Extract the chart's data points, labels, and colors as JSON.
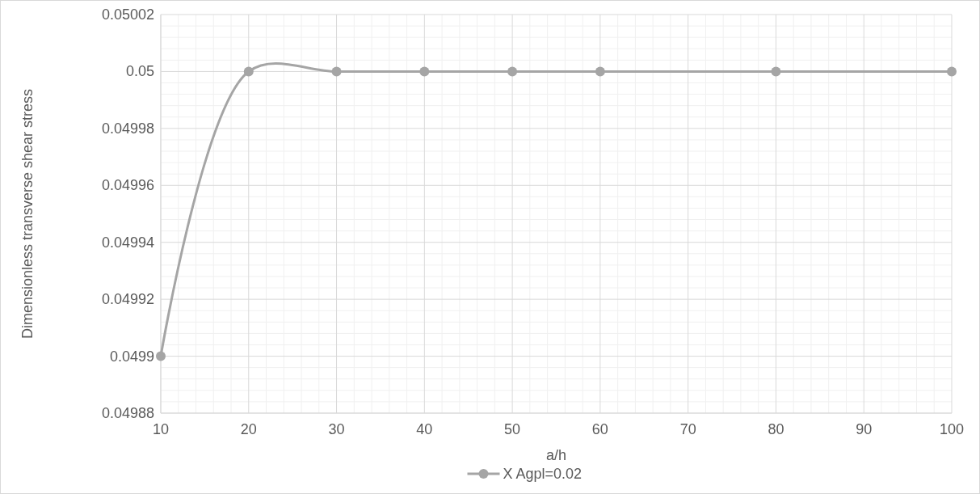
{
  "chart_data": {
    "type": "line",
    "xlabel": "a/h",
    "ylabel": "Dimensionless transverse shear stress",
    "x": [
      10,
      20,
      30,
      40,
      50,
      60,
      80,
      100
    ],
    "series": [
      {
        "name": "X Agpl=0.02",
        "color": "#a5a5a5",
        "values": [
          0.0499,
          0.05,
          0.05,
          0.05,
          0.05,
          0.05,
          0.05,
          0.05
        ]
      }
    ],
    "xlim": [
      10,
      100
    ],
    "xticks": [
      10,
      20,
      30,
      40,
      50,
      60,
      70,
      80,
      90,
      100
    ],
    "ylim": [
      0.04988,
      0.05002
    ],
    "yticks": [
      {
        "value": 0.04988,
        "label": "0.04988"
      },
      {
        "value": 0.0499,
        "label": "0.0499"
      },
      {
        "value": 0.04992,
        "label": "0.04992"
      },
      {
        "value": 0.04994,
        "label": "0.04994"
      },
      {
        "value": 0.04996,
        "label": "0.04996"
      },
      {
        "value": 0.04998,
        "label": "0.04998"
      },
      {
        "value": 0.05,
        "label": "0.05"
      },
      {
        "value": 0.05002,
        "label": "0.05002"
      }
    ],
    "grid": true,
    "legend": "bottom",
    "marker": "circle",
    "line_style": "solid"
  }
}
